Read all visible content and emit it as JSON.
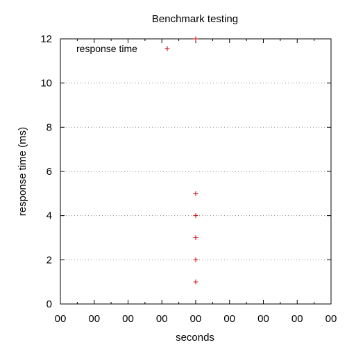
{
  "chart_data": {
    "type": "scatter",
    "title": "Benchmark testing",
    "xlabel": "seconds",
    "ylabel": "response time (ms)",
    "ylim": [
      0,
      12
    ],
    "yticks": [
      0,
      2,
      4,
      6,
      8,
      10,
      12
    ],
    "xtick_labels": [
      "00",
      "00",
      "00",
      "00",
      "00",
      "00",
      "00",
      "00",
      "00"
    ],
    "xlim": [
      0,
      8
    ],
    "grid": "horizontal dotted",
    "legend": "top-left",
    "marker": "+",
    "series": [
      {
        "name": "response time",
        "color": "#cc0000",
        "x": [
          4,
          4,
          4,
          4,
          4,
          4
        ],
        "y": [
          1,
          2,
          3,
          4,
          5,
          12
        ]
      }
    ]
  }
}
